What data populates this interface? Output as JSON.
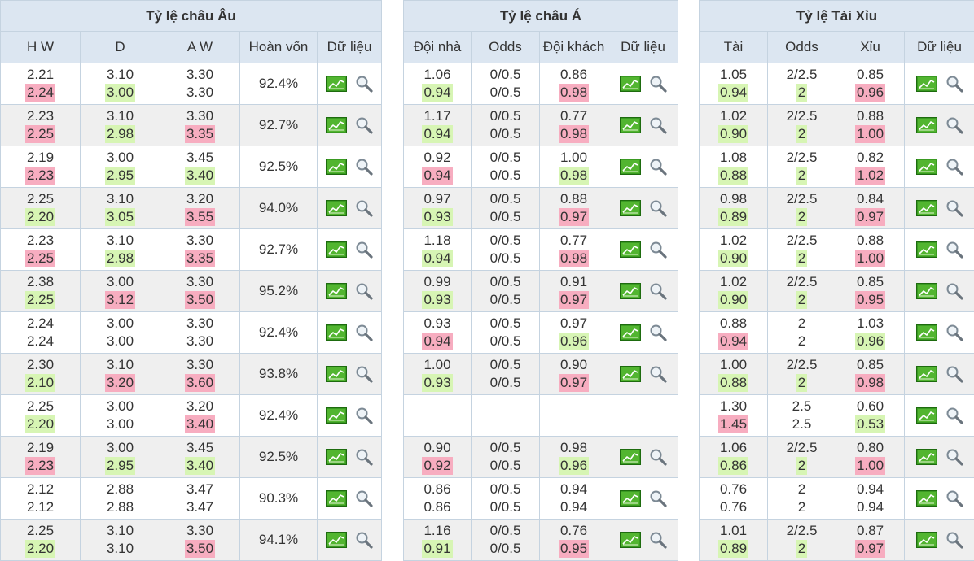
{
  "europe": {
    "title": "Tỷ lệ châu Âu",
    "headers": [
      "H W",
      "D",
      "A W",
      "Hoàn vốn",
      "Dữ liệu"
    ],
    "rows": [
      {
        "hw": [
          "2.21",
          "2.24"
        ],
        "d": [
          "3.10",
          "3.00"
        ],
        "aw": [
          "3.30",
          "3.30"
        ],
        "ret": "92.4%",
        "hwc": [
          "",
          "up"
        ],
        "dc": [
          "",
          "down"
        ],
        "awc": [
          "",
          ""
        ]
      },
      {
        "hw": [
          "2.23",
          "2.25"
        ],
        "d": [
          "3.10",
          "2.98"
        ],
        "aw": [
          "3.30",
          "3.35"
        ],
        "ret": "92.7%",
        "hwc": [
          "",
          "up"
        ],
        "dc": [
          "",
          "down"
        ],
        "awc": [
          "",
          "up"
        ]
      },
      {
        "hw": [
          "2.19",
          "2.23"
        ],
        "d": [
          "3.00",
          "2.95"
        ],
        "aw": [
          "3.45",
          "3.40"
        ],
        "ret": "92.5%",
        "hwc": [
          "",
          "up"
        ],
        "dc": [
          "",
          "down"
        ],
        "awc": [
          "",
          "down"
        ]
      },
      {
        "hw": [
          "2.25",
          "2.20"
        ],
        "d": [
          "3.10",
          "3.05"
        ],
        "aw": [
          "3.20",
          "3.55"
        ],
        "ret": "94.0%",
        "hwc": [
          "",
          "down"
        ],
        "dc": [
          "",
          "down"
        ],
        "awc": [
          "",
          "up"
        ]
      },
      {
        "hw": [
          "2.23",
          "2.25"
        ],
        "d": [
          "3.10",
          "2.98"
        ],
        "aw": [
          "3.30",
          "3.35"
        ],
        "ret": "92.7%",
        "hwc": [
          "",
          "up"
        ],
        "dc": [
          "",
          "down"
        ],
        "awc": [
          "",
          "up"
        ]
      },
      {
        "hw": [
          "2.38",
          "2.25"
        ],
        "d": [
          "3.00",
          "3.12"
        ],
        "aw": [
          "3.30",
          "3.50"
        ],
        "ret": "95.2%",
        "hwc": [
          "",
          "down"
        ],
        "dc": [
          "",
          "up"
        ],
        "awc": [
          "",
          "up"
        ]
      },
      {
        "hw": [
          "2.24",
          "2.24"
        ],
        "d": [
          "3.00",
          "3.00"
        ],
        "aw": [
          "3.30",
          "3.30"
        ],
        "ret": "92.4%",
        "hwc": [
          "",
          ""
        ],
        "dc": [
          "",
          ""
        ],
        "awc": [
          "",
          ""
        ]
      },
      {
        "hw": [
          "2.30",
          "2.10"
        ],
        "d": [
          "3.10",
          "3.20"
        ],
        "aw": [
          "3.30",
          "3.60"
        ],
        "ret": "93.8%",
        "hwc": [
          "",
          "down"
        ],
        "dc": [
          "",
          "up"
        ],
        "awc": [
          "",
          "up"
        ]
      },
      {
        "hw": [
          "2.25",
          "2.20"
        ],
        "d": [
          "3.00",
          "3.00"
        ],
        "aw": [
          "3.20",
          "3.40"
        ],
        "ret": "92.4%",
        "hwc": [
          "",
          "down"
        ],
        "dc": [
          "",
          ""
        ],
        "awc": [
          "",
          "up"
        ]
      },
      {
        "hw": [
          "2.19",
          "2.23"
        ],
        "d": [
          "3.00",
          "2.95"
        ],
        "aw": [
          "3.45",
          "3.40"
        ],
        "ret": "92.5%",
        "hwc": [
          "",
          "up"
        ],
        "dc": [
          "",
          "down"
        ],
        "awc": [
          "",
          "down"
        ]
      },
      {
        "hw": [
          "2.12",
          "2.12"
        ],
        "d": [
          "2.88",
          "2.88"
        ],
        "aw": [
          "3.47",
          "3.47"
        ],
        "ret": "90.3%",
        "hwc": [
          "",
          ""
        ],
        "dc": [
          "",
          ""
        ],
        "awc": [
          "",
          ""
        ]
      },
      {
        "hw": [
          "2.25",
          "2.20"
        ],
        "d": [
          "3.10",
          "3.10"
        ],
        "aw": [
          "3.30",
          "3.50"
        ],
        "ret": "94.1%",
        "hwc": [
          "",
          "down"
        ],
        "dc": [
          "",
          ""
        ],
        "awc": [
          "",
          "up"
        ]
      }
    ]
  },
  "asia": {
    "title": "Tỷ lệ châu Á",
    "headers": [
      "Đội nhà",
      "Odds",
      "Đội khách",
      "Dữ liệu"
    ],
    "rows": [
      {
        "h": [
          "1.06",
          "0.94"
        ],
        "o": [
          "0/0.5",
          "0/0.5"
        ],
        "a": [
          "0.86",
          "0.98"
        ],
        "hc": [
          "",
          "down"
        ],
        "ac": [
          "",
          "up"
        ]
      },
      {
        "h": [
          "1.17",
          "0.94"
        ],
        "o": [
          "0/0.5",
          "0/0.5"
        ],
        "a": [
          "0.77",
          "0.98"
        ],
        "hc": [
          "",
          "down"
        ],
        "ac": [
          "",
          "up"
        ]
      },
      {
        "h": [
          "0.92",
          "0.94"
        ],
        "o": [
          "0/0.5",
          "0/0.5"
        ],
        "a": [
          "1.00",
          "0.98"
        ],
        "hc": [
          "",
          "up"
        ],
        "ac": [
          "",
          "down"
        ]
      },
      {
        "h": [
          "0.97",
          "0.93"
        ],
        "o": [
          "0/0.5",
          "0/0.5"
        ],
        "a": [
          "0.88",
          "0.97"
        ],
        "hc": [
          "",
          "down"
        ],
        "ac": [
          "",
          "up"
        ]
      },
      {
        "h": [
          "1.18",
          "0.94"
        ],
        "o": [
          "0/0.5",
          "0/0.5"
        ],
        "a": [
          "0.77",
          "0.98"
        ],
        "hc": [
          "",
          "down"
        ],
        "ac": [
          "",
          "up"
        ]
      },
      {
        "h": [
          "0.99",
          "0.93"
        ],
        "o": [
          "0/0.5",
          "0/0.5"
        ],
        "a": [
          "0.91",
          "0.97"
        ],
        "hc": [
          "",
          "down"
        ],
        "ac": [
          "",
          "up"
        ]
      },
      {
        "h": [
          "0.93",
          "0.94"
        ],
        "o": [
          "0/0.5",
          "0/0.5"
        ],
        "a": [
          "0.97",
          "0.96"
        ],
        "hc": [
          "",
          "up"
        ],
        "ac": [
          "",
          "down"
        ]
      },
      {
        "h": [
          "1.00",
          "0.93"
        ],
        "o": [
          "0/0.5",
          "0/0.5"
        ],
        "a": [
          "0.90",
          "0.97"
        ],
        "hc": [
          "",
          "down"
        ],
        "ac": [
          "",
          "up"
        ]
      },
      {
        "empty": true
      },
      {
        "h": [
          "0.90",
          "0.92"
        ],
        "o": [
          "0/0.5",
          "0/0.5"
        ],
        "a": [
          "0.98",
          "0.96"
        ],
        "hc": [
          "",
          "up"
        ],
        "ac": [
          "",
          "down"
        ]
      },
      {
        "h": [
          "0.86",
          "0.86"
        ],
        "o": [
          "0/0.5",
          "0/0.5"
        ],
        "a": [
          "0.94",
          "0.94"
        ],
        "hc": [
          "",
          ""
        ],
        "ac": [
          "",
          ""
        ]
      },
      {
        "h": [
          "1.16",
          "0.91"
        ],
        "o": [
          "0/0.5",
          "0/0.5"
        ],
        "a": [
          "0.76",
          "0.95"
        ],
        "hc": [
          "",
          "down"
        ],
        "ac": [
          "",
          "up"
        ]
      }
    ]
  },
  "overunder": {
    "title": "Tỷ lệ Tài Xỉu",
    "headers": [
      "Tài",
      "Odds",
      "Xỉu",
      "Dữ liệu"
    ],
    "rows": [
      {
        "t": [
          "1.05",
          "0.94"
        ],
        "o": [
          "2/2.5",
          "2"
        ],
        "x": [
          "0.85",
          "0.96"
        ],
        "tc": [
          "",
          "down"
        ],
        "oc": [
          "",
          "down"
        ],
        "xc": [
          "",
          "up"
        ]
      },
      {
        "t": [
          "1.02",
          "0.90"
        ],
        "o": [
          "2/2.5",
          "2"
        ],
        "x": [
          "0.88",
          "1.00"
        ],
        "tc": [
          "",
          "down"
        ],
        "oc": [
          "",
          "down"
        ],
        "xc": [
          "",
          "up"
        ]
      },
      {
        "t": [
          "1.08",
          "0.88"
        ],
        "o": [
          "2/2.5",
          "2"
        ],
        "x": [
          "0.82",
          "1.02"
        ],
        "tc": [
          "",
          "down"
        ],
        "oc": [
          "",
          "down"
        ],
        "xc": [
          "",
          "up"
        ]
      },
      {
        "t": [
          "0.98",
          "0.89"
        ],
        "o": [
          "2/2.5",
          "2"
        ],
        "x": [
          "0.84",
          "0.97"
        ],
        "tc": [
          "",
          "down"
        ],
        "oc": [
          "",
          "down"
        ],
        "xc": [
          "",
          "up"
        ]
      },
      {
        "t": [
          "1.02",
          "0.90"
        ],
        "o": [
          "2/2.5",
          "2"
        ],
        "x": [
          "0.88",
          "1.00"
        ],
        "tc": [
          "",
          "down"
        ],
        "oc": [
          "",
          "down"
        ],
        "xc": [
          "",
          "up"
        ]
      },
      {
        "t": [
          "1.02",
          "0.90"
        ],
        "o": [
          "2/2.5",
          "2"
        ],
        "x": [
          "0.85",
          "0.95"
        ],
        "tc": [
          "",
          "down"
        ],
        "oc": [
          "",
          "down"
        ],
        "xc": [
          "",
          "up"
        ]
      },
      {
        "t": [
          "0.88",
          "0.94"
        ],
        "o": [
          "2",
          "2"
        ],
        "x": [
          "1.03",
          "0.96"
        ],
        "tc": [
          "",
          "up"
        ],
        "oc": [
          "",
          ""
        ],
        "xc": [
          "",
          "down"
        ]
      },
      {
        "t": [
          "1.00",
          "0.88"
        ],
        "o": [
          "2/2.5",
          "2"
        ],
        "x": [
          "0.85",
          "0.98"
        ],
        "tc": [
          "",
          "down"
        ],
        "oc": [
          "",
          "down"
        ],
        "xc": [
          "",
          "up"
        ]
      },
      {
        "t": [
          "1.30",
          "1.45"
        ],
        "o": [
          "2.5",
          "2.5"
        ],
        "x": [
          "0.60",
          "0.53"
        ],
        "tc": [
          "",
          "up"
        ],
        "oc": [
          "",
          ""
        ],
        "xc": [
          "",
          "down"
        ]
      },
      {
        "t": [
          "1.06",
          "0.86"
        ],
        "o": [
          "2/2.5",
          "2"
        ],
        "x": [
          "0.80",
          "1.00"
        ],
        "tc": [
          "",
          "down"
        ],
        "oc": [
          "",
          "down"
        ],
        "xc": [
          "",
          "up"
        ]
      },
      {
        "t": [
          "0.76",
          "0.76"
        ],
        "o": [
          "2",
          "2"
        ],
        "x": [
          "0.94",
          "0.94"
        ],
        "tc": [
          "",
          ""
        ],
        "oc": [
          "",
          ""
        ],
        "xc": [
          "",
          ""
        ]
      },
      {
        "t": [
          "1.01",
          "0.89"
        ],
        "o": [
          "2/2.5",
          "2"
        ],
        "x": [
          "0.87",
          "0.97"
        ],
        "tc": [
          "",
          "down"
        ],
        "oc": [
          "",
          "down"
        ],
        "xc": [
          "",
          "up"
        ]
      }
    ]
  },
  "colors": {
    "up": "#f7adc0",
    "down": "#d7f5b4",
    "header": "#dce6f1",
    "alt_row": "#efefef"
  },
  "icons": {
    "chart": "chart-icon",
    "detail": "magnifier-icon"
  }
}
